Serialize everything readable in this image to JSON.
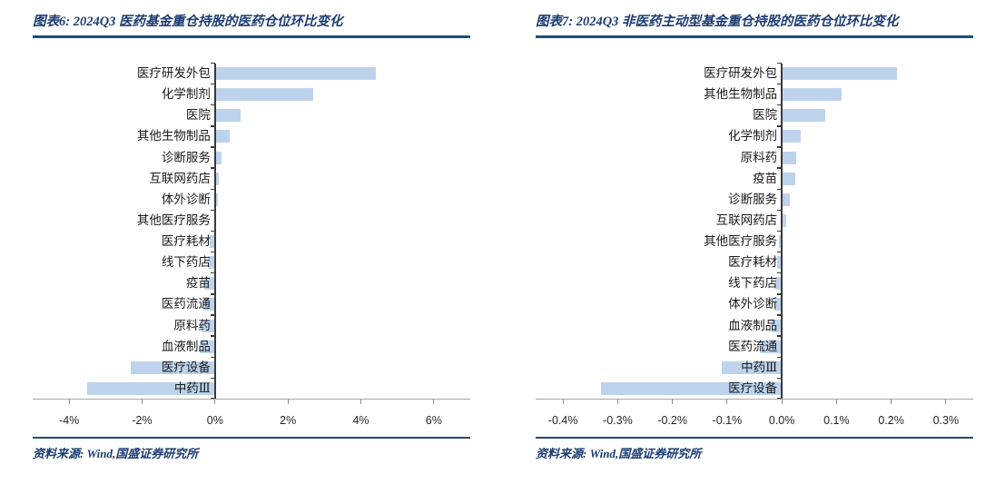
{
  "chart_data": [
    {
      "id": "figure6",
      "type": "bar",
      "orientation": "horizontal",
      "title": "图表6: 2024Q3 医药基金重仓持股的医药仓位环比变化",
      "source": "资料来源: Wind,国盛证券研究所",
      "unit": "%",
      "categories": [
        "医疗研发外包",
        "化学制剂",
        "医院",
        "其他生物制品",
        "诊断服务",
        "互联网药店",
        "体外诊断",
        "其他医疗服务",
        "医疗耗材",
        "线下药店",
        "疫苗",
        "医药流通",
        "原料药",
        "血液制品",
        "医疗设备",
        "中药Ⅲ"
      ],
      "values": [
        4.4,
        2.7,
        0.7,
        0.4,
        0.17,
        0.1,
        0.07,
        0.01,
        -0.15,
        -0.2,
        -0.29,
        -0.31,
        -0.37,
        -0.41,
        -2.3,
        -3.5
      ],
      "x_ticks": [
        "-4%",
        "-2%",
        "0%",
        "2%",
        "4%",
        "6%"
      ],
      "x_tick_values": [
        -4,
        -2,
        0,
        2,
        4,
        6
      ],
      "xlim": [
        -5,
        7
      ],
      "grid": false,
      "legend": "none",
      "bar_color": "#BDD3EC"
    },
    {
      "id": "figure7",
      "type": "bar",
      "orientation": "horizontal",
      "title": "图表7: 2024Q3 非医药主动型基金重仓持股的医药仓位环比变化",
      "source": "资料来源: Wind,国盛证券研究所",
      "unit": "%",
      "categories": [
        "医疗研发外包",
        "其他生物制品",
        "医院",
        "化学制剂",
        "原料药",
        "疫苗",
        "诊断服务",
        "互联网药店",
        "其他医疗服务",
        "医疗耗材",
        "线下药店",
        "体外诊断",
        "血液制品",
        "医药流通",
        "中药Ⅲ",
        "医疗设备"
      ],
      "values": [
        0.21,
        0.11,
        0.08,
        0.035,
        0.026,
        0.024,
        0.014,
        0.008,
        -0.005,
        -0.008,
        -0.011,
        -0.013,
        -0.018,
        -0.04,
        -0.11,
        -0.33
      ],
      "x_ticks": [
        "-0.4%",
        "-0.3%",
        "-0.2%",
        "-0.1%",
        "0.0%",
        "0.1%",
        "0.2%",
        "0.3%"
      ],
      "x_tick_values": [
        -0.4,
        -0.3,
        -0.2,
        -0.1,
        0,
        0.1,
        0.2,
        0.3
      ],
      "xlim": [
        -0.45,
        0.35
      ],
      "grid": false,
      "legend": "none",
      "bar_color": "#BDD3EC"
    }
  ],
  "colors": {
    "title_text": "#1B3C74",
    "rule": "#1F4E79",
    "bar_fill": "#BDD3EC",
    "zero_axis": "#3a3a3a",
    "x_axis": "#A6A6A6",
    "tick_label": "#262626"
  }
}
